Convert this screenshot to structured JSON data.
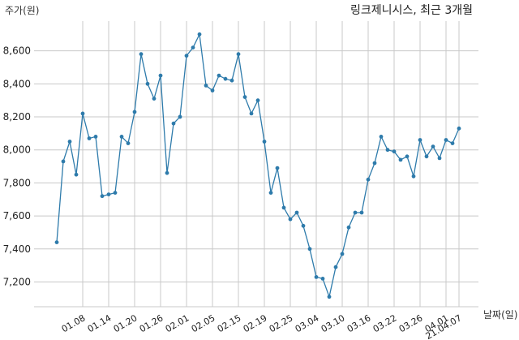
{
  "chart_data": {
    "type": "line",
    "title": "링크제니시스, 최근 3개월",
    "xlabel": "날짜(일)",
    "ylabel": "주가(원)",
    "ylim": [
      7050,
      8780
    ],
    "yticks": [
      7200,
      7400,
      7600,
      7800,
      8000,
      8200,
      8400,
      8600
    ],
    "ytick_labels": [
      "7,200",
      "7,400",
      "7,600",
      "7,800",
      "8,000",
      "8,200",
      "8,400",
      "8,600"
    ],
    "xtick_labels": [
      "01.08",
      "01.14",
      "01.20",
      "01.26",
      "02.01",
      "02.05",
      "02.15",
      "02.19",
      "02.25",
      "03.04",
      "03.10",
      "03.16",
      "03.22",
      "03.26",
      "04.01",
      "21.04.07"
    ],
    "xtick_index": [
      4,
      8,
      12,
      16,
      20,
      24,
      28,
      32,
      36,
      40,
      44,
      48,
      52,
      56,
      60,
      62
    ],
    "grid": true,
    "colors": {
      "line": "#2e7bab",
      "grid": "#c8c8c8"
    },
    "series": [
      {
        "values": [
          7440,
          7930,
          8050,
          7850,
          8220,
          8070,
          8080,
          7720,
          7730,
          7740,
          8080,
          8040,
          8230,
          8580,
          8400,
          8310,
          8450,
          7860,
          8160,
          8200,
          8570,
          8620,
          8700,
          8390,
          8360,
          8450,
          8430,
          8420,
          8580,
          8320,
          8220,
          8300,
          8050,
          7740,
          7890,
          7650,
          7580,
          7620,
          7540,
          7400,
          7230,
          7220,
          7110,
          7290,
          7370,
          7530,
          7620,
          7620,
          7820,
          7920,
          8080,
          8000,
          7990,
          7940,
          7960,
          7840,
          8060,
          7960,
          8020,
          7950,
          8060,
          8040,
          8130
        ]
      }
    ]
  }
}
